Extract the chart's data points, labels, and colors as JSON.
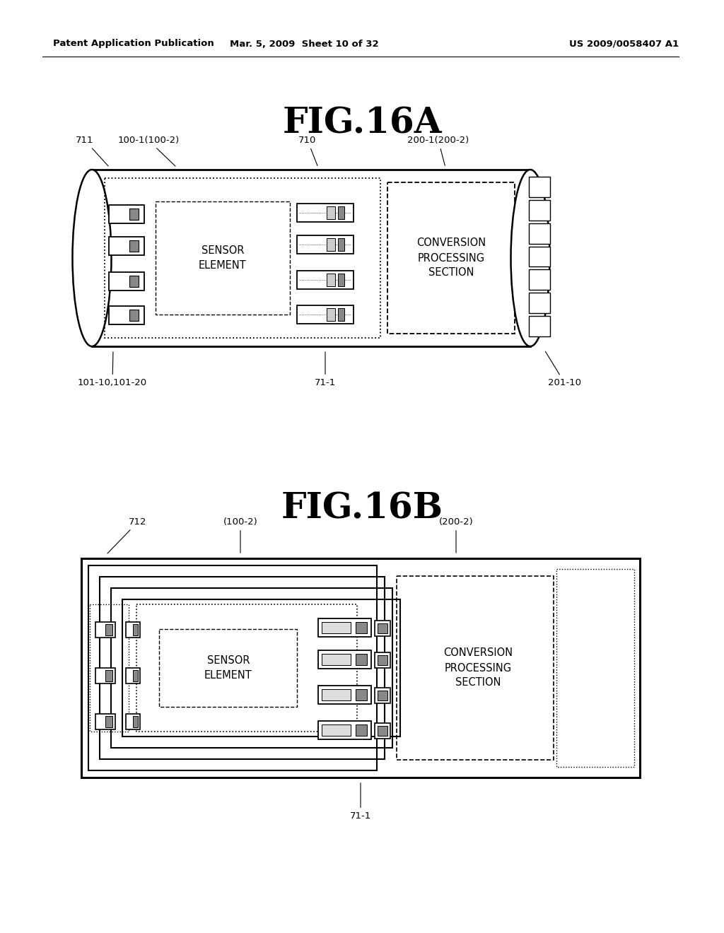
{
  "fig_title_a": "FIG.16A",
  "fig_title_b": "FIG.16B",
  "header_left": "Patent Application Publication",
  "header_mid": "Mar. 5, 2009  Sheet 10 of 32",
  "header_right": "US 2009/0058407 A1",
  "bg_color": "#ffffff",
  "line_color": "#000000"
}
